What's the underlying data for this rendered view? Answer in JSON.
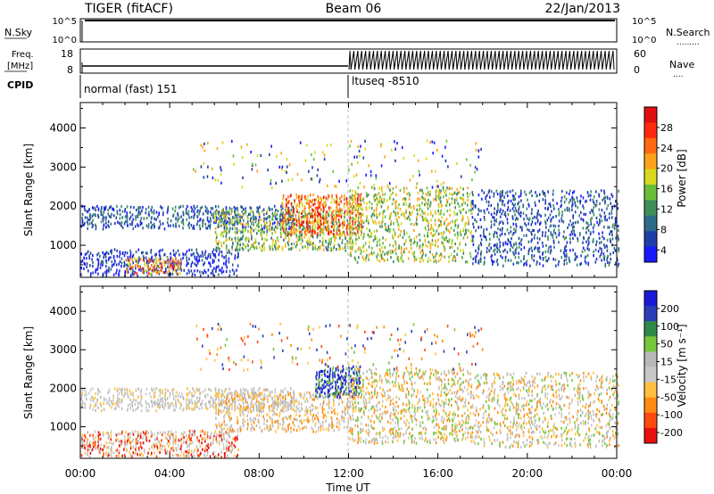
{
  "header": {
    "title_left": "TIGER (fitACF)",
    "title_center": "Beam 06",
    "title_right": "22/Jan/2013"
  },
  "strip_nsky": {
    "label": "N.Sky",
    "ticks_left": [
      "10^5",
      "10^0"
    ],
    "ticks_right": [
      "10^5",
      "10^0"
    ],
    "label_right": "N.Search",
    "label_right_dots": "........."
  },
  "strip_freq": {
    "label_line1": "Freq.",
    "label_line2": "[MHz]",
    "ticks_left": [
      "18",
      "8"
    ],
    "ticks_right": [
      "60",
      "0"
    ],
    "label_right": "Nave",
    "label_right_dots": "...."
  },
  "strip_cpid": {
    "label": "CPID",
    "segment1": "normal (fast) 151",
    "segment2": "ltuseq -8510"
  },
  "colors": {
    "power_scale": [
      "#1a1aff",
      "#1f3fa8",
      "#2e6b8a",
      "#3f8f5a",
      "#6abf3a",
      "#d8d820",
      "#ffa41a",
      "#ff6a10",
      "#ff2a10",
      "#e01010"
    ],
    "velocity_scale": [
      "#e81010",
      "#ff4a10",
      "#ff8c10",
      "#ffc040",
      "#c8c8c8",
      "#b8b8b8",
      "#76c83a",
      "#2f8a4a",
      "#2a3fb8",
      "#1a1ad8"
    ]
  },
  "chart_data": [
    {
      "type": "heatmap",
      "name": "power",
      "ylabel": "Slant Range [km]",
      "yticks": [
        "4000",
        "3000",
        "2000",
        "1000"
      ],
      "ylim": [
        180,
        4650
      ],
      "colorbar_label": "Power [dB]",
      "colorbar_ticks": [
        "28",
        "24",
        "20",
        "16",
        "12",
        "8",
        "4"
      ],
      "scatter_regions": [
        {
          "t0": 0.0,
          "t1": 9.5,
          "r0": 1450,
          "r1": 2000,
          "density": 0.45,
          "pal": [
            0,
            1,
            1,
            2,
            2,
            3
          ]
        },
        {
          "t0": 0.0,
          "t1": 7.0,
          "r0": 250,
          "r1": 900,
          "density": 0.4,
          "pal": [
            0,
            0,
            1,
            1,
            2
          ]
        },
        {
          "t0": 2.0,
          "t1": 4.5,
          "r0": 300,
          "r1": 700,
          "density": 0.5,
          "pal": [
            5,
            6,
            7,
            8
          ]
        },
        {
          "t0": 6.0,
          "t1": 12.0,
          "r0": 900,
          "r1": 1900,
          "density": 0.45,
          "pal": [
            2,
            3,
            4,
            5,
            6
          ]
        },
        {
          "t0": 9.0,
          "t1": 12.5,
          "r0": 1300,
          "r1": 2300,
          "density": 0.55,
          "pal": [
            5,
            6,
            7,
            8,
            9
          ]
        },
        {
          "t0": 12.0,
          "t1": 17.5,
          "r0": 600,
          "r1": 2500,
          "density": 0.35,
          "pal": [
            3,
            4,
            5,
            6
          ]
        },
        {
          "t0": 17.5,
          "t1": 24.0,
          "r0": 500,
          "r1": 2400,
          "density": 0.3,
          "pal": [
            0,
            1,
            1,
            2,
            3
          ]
        },
        {
          "t0": 5.0,
          "t1": 18.0,
          "r0": 2500,
          "r1": 3700,
          "density": 0.05,
          "pal": [
            0,
            1,
            4,
            5,
            6
          ]
        }
      ]
    },
    {
      "type": "heatmap",
      "name": "velocity",
      "xlabel": "Time UT",
      "ylabel": "Slant Range [km]",
      "yticks": [
        "4000",
        "3000",
        "2000",
        "1000"
      ],
      "ylim": [
        180,
        4650
      ],
      "xticks": [
        "00:00",
        "04:00",
        "08:00",
        "12:00",
        "16:00",
        "20:00",
        "00:00"
      ],
      "colorbar_label": "Velocity [m s⁻¹]",
      "colorbar_ticks": [
        "200",
        "100",
        "50",
        "15",
        "-15",
        "-50",
        "-100",
        "-200"
      ],
      "scatter_regions": [
        {
          "t0": 0.0,
          "t1": 9.5,
          "r0": 1450,
          "r1": 2000,
          "density": 0.45,
          "pal": [
            4,
            4,
            5,
            5,
            3
          ]
        },
        {
          "t0": 0.0,
          "t1": 7.0,
          "r0": 250,
          "r1": 900,
          "density": 0.45,
          "pal": [
            4,
            5,
            0,
            1,
            3
          ]
        },
        {
          "t0": 6.0,
          "t1": 12.0,
          "r0": 900,
          "r1": 1900,
          "density": 0.4,
          "pal": [
            4,
            5,
            3,
            2
          ]
        },
        {
          "t0": 10.5,
          "t1": 12.5,
          "r0": 1800,
          "r1": 2600,
          "density": 0.6,
          "pal": [
            8,
            9,
            9,
            7,
            6
          ]
        },
        {
          "t0": 12.0,
          "t1": 17.5,
          "r0": 600,
          "r1": 2500,
          "density": 0.35,
          "pal": [
            3,
            2,
            4,
            5,
            6
          ]
        },
        {
          "t0": 17.5,
          "t1": 24.0,
          "r0": 500,
          "r1": 2400,
          "density": 0.3,
          "pal": [
            2,
            3,
            4,
            6,
            5
          ]
        },
        {
          "t0": 5.0,
          "t1": 18.0,
          "r0": 2500,
          "r1": 3700,
          "density": 0.05,
          "pal": [
            2,
            3,
            6,
            8,
            1
          ]
        }
      ]
    }
  ]
}
